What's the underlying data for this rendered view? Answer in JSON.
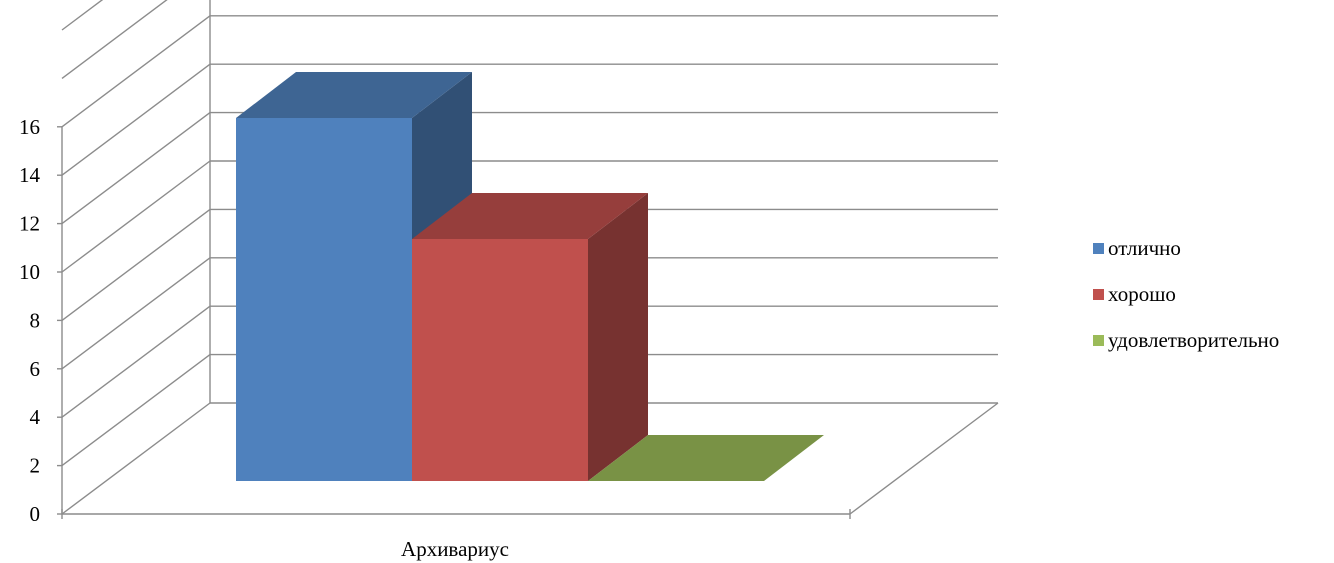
{
  "chart_data": {
    "type": "bar",
    "title": "",
    "xlabel": "",
    "ylabel": "",
    "categories": [
      "Архивариус"
    ],
    "ylim": [
      0,
      16
    ],
    "yticks": [
      0,
      2,
      4,
      6,
      8,
      10,
      12,
      14,
      16
    ],
    "grid": true,
    "three_d": true,
    "legend_position": "right",
    "series": [
      {
        "name": "отлично",
        "values": [
          15
        ],
        "color": "#4F81BD"
      },
      {
        "name": "хорошо",
        "values": [
          10
        ],
        "color": "#C0504D"
      },
      {
        "name": "удовлетворительно",
        "values": [
          0
        ],
        "color": "#9BBB59"
      }
    ]
  }
}
